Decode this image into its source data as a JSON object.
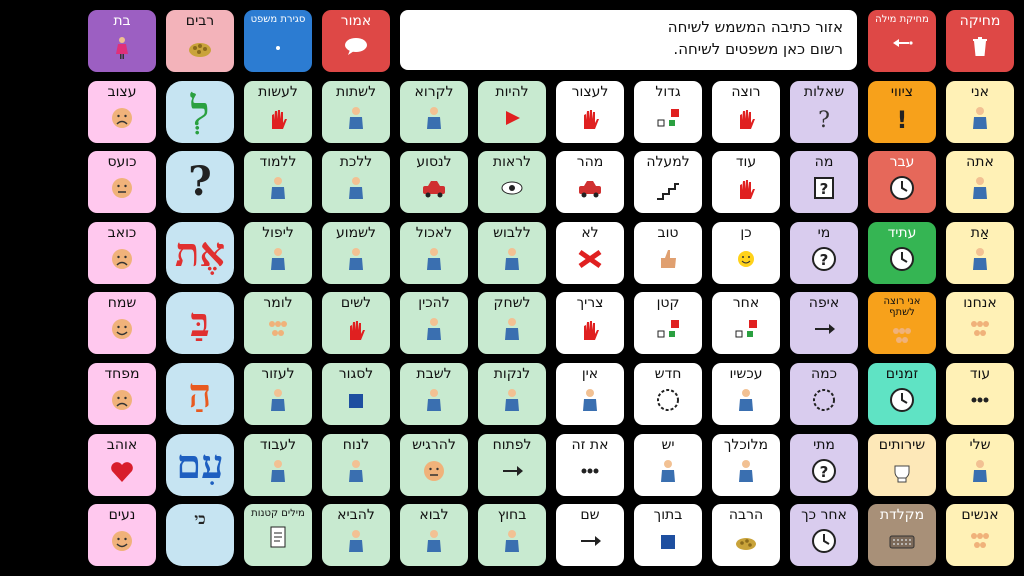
{
  "top_bar": {
    "clear": "מחיקה",
    "delete_word": "מחיקת מילה",
    "text_area": {
      "line1": "אזור כתיבה המשמש לשיחה",
      "line2": "רשום כאן משפטים לשיחה."
    },
    "say": "אמור",
    "close_sentence": "סגירת משפט",
    "plural": "רבים",
    "daughter": "בת"
  },
  "colors": {
    "verbs": "#c8ead0",
    "adjectives": "#ffffff",
    "questions": "#d9ccee",
    "pronouns": "#fff1b6",
    "feelings": "#ffc8ee",
    "grammar": "#c6e4f2"
  },
  "col_pronouns": [
    "אני",
    "אתה",
    "אַת",
    "אנחנו",
    "עוד",
    "שלי",
    "אנשים"
  ],
  "col_special": [
    "ציווי",
    "עבר",
    "עתיד",
    "אני רוצה לשתף",
    "זמנים",
    "שירותים",
    "מקלדת"
  ],
  "col_questions": [
    "שאלות",
    "מה",
    "מי",
    "איפה",
    "כמה",
    "מתי",
    "אחר כך"
  ],
  "col_adj1": [
    "רוצה",
    "עוד",
    "כן",
    "אחר",
    "עכשיו",
    "מלוכלך",
    "הרבה"
  ],
  "col_adj2": [
    "גדול",
    "למעלה",
    "טוב",
    "קטן",
    "חדש",
    "יש",
    "בתוך"
  ],
  "col_adj3": [
    "לעצור",
    "מהר",
    "לא",
    "צריך",
    "אין",
    "את זה",
    "שם"
  ],
  "col_verb1": [
    "להיות",
    "לראות",
    "ללבוש",
    "לשחק",
    "לנקות",
    "לפתוח",
    "בחוץ"
  ],
  "col_verb2": [
    "לקרוא",
    "לנסוע",
    "לאכול",
    "להכין",
    "לשבת",
    "להרגיש",
    "לבוא"
  ],
  "col_verb3": [
    "לשתות",
    "ללכת",
    "לשמוע",
    "לשים",
    "לסגור",
    "לנוח",
    "להביא"
  ],
  "col_verb4": [
    "לעשות",
    "ללמוד",
    "ליפול",
    "לומר",
    "לעזור",
    "לעבוד",
    "מילים קטנות"
  ],
  "col_grammar": [
    "לְ",
    "?",
    "אֶת",
    "בַּ",
    "הַ",
    "עִם",
    "כי"
  ],
  "col_feelings": [
    "עצוב",
    "כועס",
    "כואב",
    "שמח",
    "מפחד",
    "אוהב",
    "נעים"
  ]
}
